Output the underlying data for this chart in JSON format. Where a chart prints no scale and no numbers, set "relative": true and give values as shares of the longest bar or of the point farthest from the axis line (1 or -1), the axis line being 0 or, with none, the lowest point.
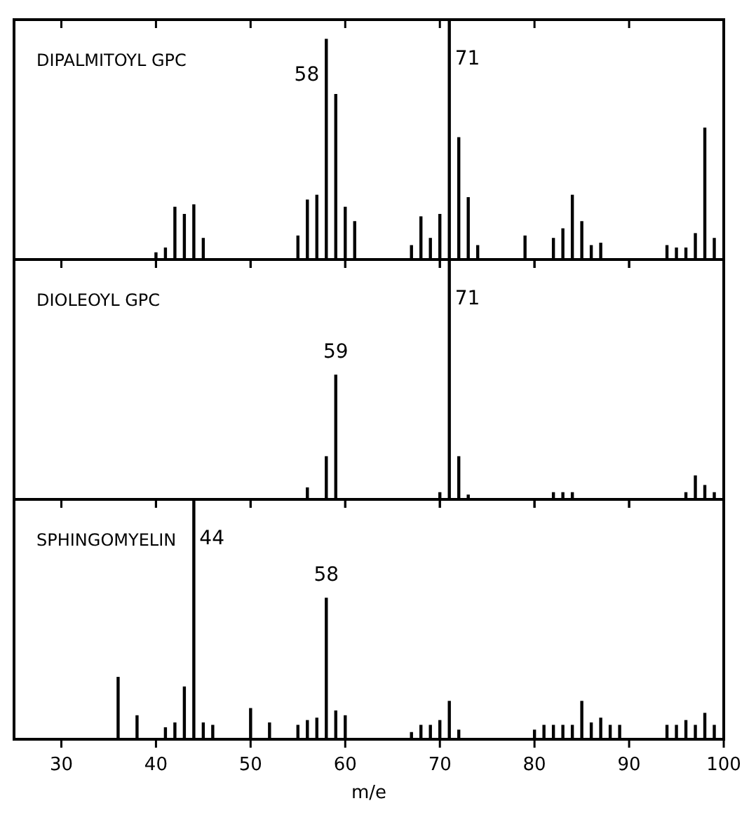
{
  "chart_data": [
    {
      "type": "bar",
      "title": "DIPALMITOYL GPC",
      "relative": true,
      "tick_labels": false,
      "xlim": [
        25,
        100
      ],
      "xticks": [
        30,
        40,
        50,
        60,
        70,
        80,
        90,
        100
      ],
      "color": "#000000",
      "x": [
        40,
        41,
        42,
        43,
        44,
        45,
        55,
        56,
        57,
        58,
        59,
        60,
        61,
        67,
        68,
        69,
        70,
        71,
        72,
        73,
        74,
        79,
        82,
        83,
        84,
        85,
        86,
        87,
        94,
        95,
        96,
        97,
        98,
        99
      ],
      "values": [
        0.03,
        0.05,
        0.22,
        0.19,
        0.23,
        0.09,
        0.1,
        0.25,
        0.27,
        0.92,
        0.69,
        0.22,
        0.16,
        0.06,
        0.18,
        0.09,
        0.19,
        1,
        0.51,
        0.26,
        0.06,
        0.1,
        0.09,
        0.13,
        0.27,
        0.16,
        0.06,
        0.07,
        0.06,
        0.05,
        0.05,
        0.11,
        0.55,
        0.09
      ],
      "annotations": [
        {
          "text": "58",
          "x": 58,
          "y": 0.92
        },
        {
          "text": "71",
          "x": 71,
          "y": 1
        }
      ]
    },
    {
      "type": "bar",
      "title": "DIOLEOYL GPC",
      "relative": true,
      "tick_labels": false,
      "xlim": [
        25,
        100
      ],
      "xticks": [
        30,
        40,
        50,
        60,
        70,
        80,
        90,
        100
      ],
      "color": "#000000",
      "x": [
        56,
        58,
        59,
        70,
        71,
        72,
        73,
        82,
        83,
        84,
        96,
        97,
        98,
        99
      ],
      "values": [
        0.05,
        0.18,
        0.52,
        0.03,
        1,
        0.18,
        0.02,
        0.03,
        0.03,
        0.03,
        0.03,
        0.1,
        0.06,
        0.03
      ],
      "annotations": [
        {
          "text": "59",
          "x": 59,
          "y": 0.52
        },
        {
          "text": "71",
          "x": 71,
          "y": 1
        }
      ]
    },
    {
      "type": "bar",
      "title": "SPHINGOMYELIN",
      "relative": true,
      "tick_labels": "x",
      "xlabel": "m/e",
      "xlim": [
        25,
        100
      ],
      "xticks": [
        30,
        40,
        50,
        60,
        70,
        80,
        90,
        100
      ],
      "color": "#000000",
      "x": [
        36,
        38,
        41,
        42,
        43,
        44,
        45,
        46,
        50,
        52,
        55,
        56,
        57,
        58,
        59,
        60,
        67,
        68,
        69,
        70,
        71,
        72,
        80,
        81,
        82,
        83,
        84,
        85,
        86,
        87,
        88,
        89,
        94,
        95,
        96,
        97,
        98,
        99
      ],
      "values": [
        0.26,
        0.1,
        0.05,
        0.07,
        0.22,
        1,
        0.07,
        0.06,
        0.13,
        0.07,
        0.06,
        0.08,
        0.09,
        0.59,
        0.12,
        0.1,
        0.03,
        0.06,
        0.06,
        0.08,
        0.16,
        0.04,
        0.04,
        0.06,
        0.06,
        0.06,
        0.06,
        0.16,
        0.07,
        0.09,
        0.06,
        0.06,
        0.06,
        0.06,
        0.08,
        0.06,
        0.11,
        0.06
      ],
      "annotations": [
        {
          "text": "44",
          "x": 44,
          "y": 1
        },
        {
          "text": "58",
          "x": 58,
          "y": 0.59
        }
      ]
    }
  ]
}
